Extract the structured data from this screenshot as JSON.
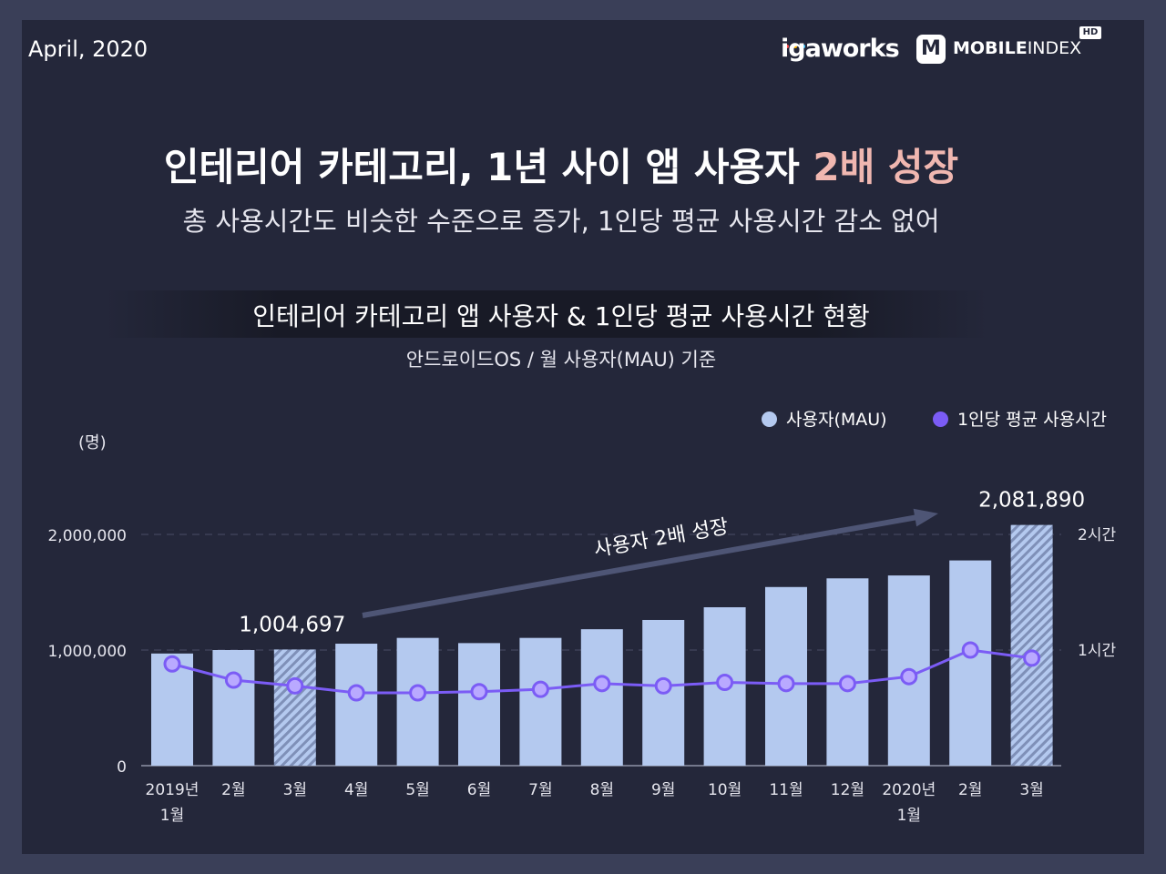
{
  "header": {
    "date": "April, 2020",
    "logo_iga_bold": "iga",
    "logo_iga_rest": "works",
    "logo_mi_letter": "M",
    "logo_mi_bold": "MOBILE",
    "logo_mi_light": "INDEX",
    "logo_mi_badge": "HD"
  },
  "headline": {
    "title_main": "인테리어 카테고리, 1년 사이 앱 사용자 ",
    "title_highlight": "2배 성장",
    "subtitle": "총 사용시간도 비슷한 수준으로 증가, 1인당 평균 사용시간 감소 없어"
  },
  "chart_header": {
    "title": "인테리어 카테고리 앱 사용자 & 1인당 평균 사용시간 현황",
    "subtitle": "안드로이드OS / 월 사용자(MAU) 기준",
    "unit_label": "(명)"
  },
  "colors": {
    "bar": "#b4c9ef",
    "bar_hatch": "#8a9cc4",
    "line": "#7b5cf5",
    "highlight": "#f0b7b0",
    "arrow": "#4e5575"
  },
  "chart_data": {
    "type": "bar+line",
    "categories": [
      "2019년\n1월",
      "2월",
      "3월",
      "4월",
      "5월",
      "6월",
      "7월",
      "8월",
      "9월",
      "10월",
      "11월",
      "12월",
      "2020년\n1월",
      "2월",
      "3월"
    ],
    "series": [
      {
        "name": "사용자(MAU)",
        "axis": "left",
        "type": "bar",
        "values": [
          970000,
          1000000,
          1004697,
          1055000,
          1105000,
          1060000,
          1105000,
          1180000,
          1260000,
          1370000,
          1545000,
          1620000,
          1645000,
          1775000,
          2081890
        ],
        "hatched_indices": [
          2,
          14
        ]
      },
      {
        "name": "1인당 평균 사용시간",
        "axis": "right",
        "type": "line",
        "unit": "hours",
        "values": [
          0.88,
          0.74,
          0.69,
          0.63,
          0.63,
          0.64,
          0.66,
          0.71,
          0.69,
          0.72,
          0.71,
          0.71,
          0.77,
          1.0,
          0.93
        ]
      }
    ],
    "y_left": {
      "min": 0,
      "max": 2200000,
      "ticks": [
        0,
        1000000,
        2000000
      ],
      "tick_labels": [
        "0",
        "1,000,000",
        "2,000,000"
      ]
    },
    "y_right": {
      "min": 0,
      "max": 2.2,
      "ticks": [
        1,
        2
      ],
      "tick_labels": [
        "1시간",
        "2시간"
      ]
    },
    "data_labels": [
      {
        "index": 2,
        "text": "1,004,697"
      },
      {
        "index": 14,
        "text": "2,081,890"
      }
    ],
    "annotation": {
      "text": "사용자 2배 성장",
      "from_index": 2,
      "to_index": 14
    },
    "legend": [
      "사용자(MAU)",
      "1인당 평균 사용시간"
    ],
    "legend_position": "top-right",
    "grid": "dashed at left ticks"
  }
}
